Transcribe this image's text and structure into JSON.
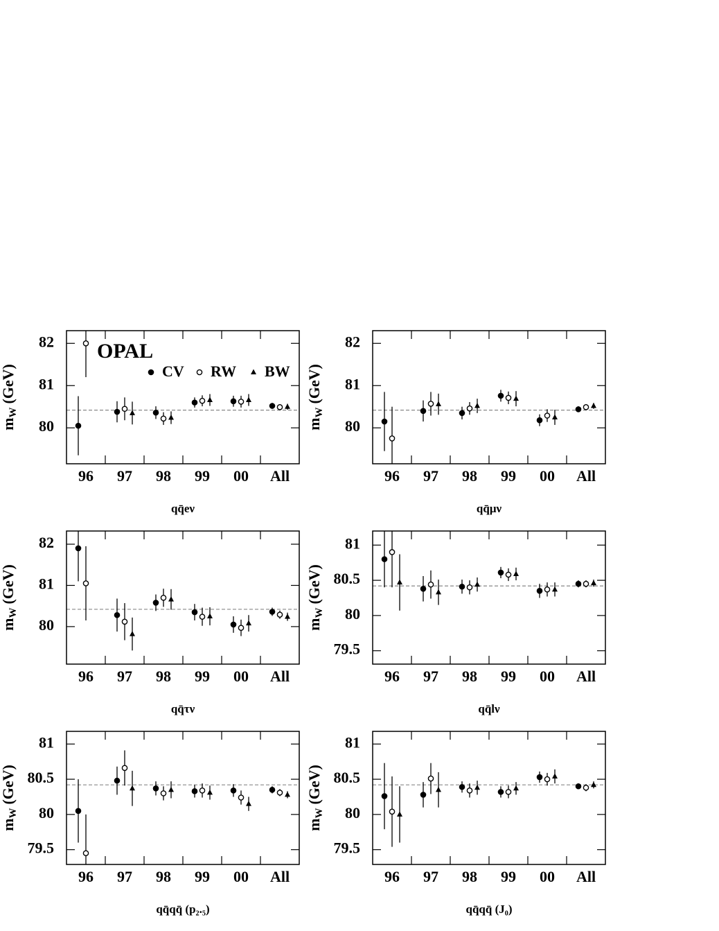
{
  "chart_data": [
    {
      "type": "errorbar",
      "xlabel": "qq̄eν",
      "ylabel": "m",
      "ylabel_sub": "W",
      "ylabel_unit": "(GeV)",
      "annotation": "OPAL",
      "legend": true,
      "categories": [
        "96",
        "97",
        "98",
        "99",
        "00",
        "All"
      ],
      "ylim": [
        79.15,
        82.3
      ],
      "yticks": [
        80,
        81,
        82
      ],
      "reference": 80.42,
      "series": [
        {
          "name": "CV",
          "marker": "circle-filled",
          "color": "#000000",
          "values": [
            80.05,
            80.38,
            80.36,
            80.6,
            80.63,
            80.52
          ],
          "errors": [
            0.7,
            0.25,
            0.15,
            0.12,
            0.13,
            0.07
          ]
        },
        {
          "name": "RW",
          "marker": "circle-open",
          "color": "#000000",
          "values": [
            82.0,
            80.45,
            80.22,
            80.64,
            80.62,
            80.49
          ],
          "errors": [
            0.8,
            0.27,
            0.15,
            0.13,
            0.14,
            0.07
          ]
        },
        {
          "name": "BW",
          "marker": "triangle",
          "color": "#000000",
          "values": [
            null,
            80.35,
            80.24,
            80.66,
            80.66,
            80.5
          ],
          "errors": [
            null,
            0.27,
            0.15,
            0.14,
            0.14,
            0.07
          ]
        }
      ]
    },
    {
      "type": "errorbar",
      "xlabel": "qq̄μν",
      "ylabel": "m",
      "ylabel_sub": "W",
      "ylabel_unit": "(GeV)",
      "categories": [
        "96",
        "97",
        "98",
        "99",
        "00",
        "All"
      ],
      "ylim": [
        79.15,
        82.3
      ],
      "yticks": [
        80,
        81,
        82
      ],
      "reference": 80.42,
      "series": [
        {
          "marker": "circle-filled",
          "color": "#000000",
          "values": [
            80.15,
            80.4,
            80.35,
            80.76,
            80.18,
            80.44
          ],
          "errors": [
            0.7,
            0.25,
            0.15,
            0.14,
            0.14,
            0.07
          ]
        },
        {
          "marker": "circle-open",
          "color": "#000000",
          "values": [
            79.75,
            80.57,
            80.46,
            80.71,
            80.29,
            80.49
          ],
          "errors": [
            0.75,
            0.28,
            0.15,
            0.15,
            0.15,
            0.07
          ]
        },
        {
          "marker": "triangle",
          "color": "#000000",
          "values": [
            null,
            80.56,
            80.52,
            80.69,
            80.25,
            80.52
          ],
          "errors": [
            null,
            0.25,
            0.17,
            0.18,
            0.18,
            0.07
          ]
        }
      ]
    },
    {
      "type": "errorbar",
      "xlabel": "qq̄τν",
      "ylabel": "m",
      "ylabel_sub": "W",
      "ylabel_unit": "(GeV)",
      "categories": [
        "96",
        "97",
        "98",
        "99",
        "00",
        "All"
      ],
      "ylim": [
        79.09,
        82.32
      ],
      "yticks": [
        80,
        81,
        82
      ],
      "reference": 80.42,
      "series": [
        {
          "marker": "circle-filled",
          "color": "#000000",
          "values": [
            81.9,
            80.28,
            80.58,
            80.35,
            80.05,
            80.36
          ],
          "errors": [
            0.8,
            0.4,
            0.2,
            0.2,
            0.2,
            0.1
          ]
        },
        {
          "marker": "circle-open",
          "color": "#000000",
          "values": [
            81.05,
            80.12,
            80.7,
            80.24,
            79.97,
            80.29
          ],
          "errors": [
            0.9,
            0.45,
            0.22,
            0.22,
            0.2,
            0.1
          ]
        },
        {
          "marker": "triangle",
          "color": "#000000",
          "values": [
            null,
            79.82,
            80.66,
            80.25,
            80.08,
            80.24
          ],
          "errors": [
            null,
            0.4,
            0.25,
            0.22,
            0.2,
            0.1
          ]
        }
      ]
    },
    {
      "type": "errorbar",
      "xlabel": "qq̄lν",
      "ylabel": "m",
      "ylabel_sub": "W",
      "ylabel_unit": "(GeV)",
      "categories": [
        "96",
        "97",
        "98",
        "99",
        "00",
        "All"
      ],
      "ylim": [
        79.31,
        81.2
      ],
      "yticks": [
        79.5,
        80,
        80.5,
        81
      ],
      "reference": 80.42,
      "series": [
        {
          "marker": "circle-filled",
          "color": "#000000",
          "values": [
            80.8,
            80.38,
            80.41,
            80.61,
            80.35,
            80.45
          ],
          "errors": [
            0.4,
            0.18,
            0.1,
            0.08,
            0.1,
            0.05
          ]
        },
        {
          "marker": "circle-open",
          "color": "#000000",
          "values": [
            80.9,
            80.44,
            80.4,
            80.58,
            80.37,
            80.45
          ],
          "errors": [
            0.5,
            0.2,
            0.1,
            0.09,
            0.1,
            0.05
          ]
        },
        {
          "marker": "triangle",
          "color": "#000000",
          "values": [
            80.47,
            80.33,
            80.44,
            80.59,
            80.37,
            80.46
          ],
          "errors": [
            0.4,
            0.18,
            0.1,
            0.09,
            0.1,
            0.05
          ]
        }
      ]
    },
    {
      "type": "errorbar",
      "xlabel": "qq̄qq̄ (p₂.₅)",
      "ylabel": "m",
      "ylabel_sub": "W",
      "ylabel_unit": "(GeV)",
      "categories": [
        "96",
        "97",
        "98",
        "99",
        "00",
        "All"
      ],
      "ylim": [
        79.29,
        81.18
      ],
      "yticks": [
        79.5,
        80,
        80.5,
        81
      ],
      "reference": 80.42,
      "series": [
        {
          "marker": "circle-filled",
          "color": "#000000",
          "values": [
            80.05,
            80.48,
            80.37,
            80.33,
            80.34,
            80.35
          ],
          "errors": [
            0.45,
            0.2,
            0.1,
            0.09,
            0.09,
            0.05
          ]
        },
        {
          "marker": "circle-open",
          "color": "#000000",
          "values": [
            79.45,
            80.66,
            80.3,
            80.34,
            80.24,
            80.31
          ],
          "errors": [
            0.55,
            0.25,
            0.1,
            0.1,
            0.1,
            0.05
          ]
        },
        {
          "marker": "triangle",
          "color": "#000000",
          "values": [
            null,
            80.37,
            80.35,
            80.31,
            80.15,
            80.28
          ],
          "errors": [
            null,
            0.25,
            0.12,
            0.1,
            0.1,
            0.05
          ]
        }
      ]
    },
    {
      "type": "errorbar",
      "xlabel": "qq̄qq̄ (J₀)",
      "ylabel": "m",
      "ylabel_sub": "W",
      "ylabel_unit": "(GeV)",
      "categories": [
        "96",
        "97",
        "98",
        "99",
        "00",
        "All"
      ],
      "ylim": [
        79.29,
        81.18
      ],
      "yticks": [
        79.5,
        80,
        80.5,
        81
      ],
      "reference": 80.42,
      "series": [
        {
          "marker": "circle-filled",
          "color": "#000000",
          "values": [
            80.26,
            80.28,
            80.39,
            80.32,
            80.53,
            80.4
          ],
          "errors": [
            0.47,
            0.18,
            0.08,
            0.08,
            0.08,
            0.04
          ]
        },
        {
          "marker": "circle-open",
          "color": "#000000",
          "values": [
            80.04,
            80.51,
            80.34,
            80.32,
            80.5,
            80.38
          ],
          "errors": [
            0.5,
            0.22,
            0.1,
            0.09,
            0.09,
            0.05
          ]
        },
        {
          "marker": "triangle",
          "color": "#000000",
          "values": [
            80.0,
            80.35,
            80.38,
            80.37,
            80.54,
            80.42
          ],
          "errors": [
            0.4,
            0.25,
            0.1,
            0.09,
            0.1,
            0.05
          ]
        }
      ]
    }
  ]
}
